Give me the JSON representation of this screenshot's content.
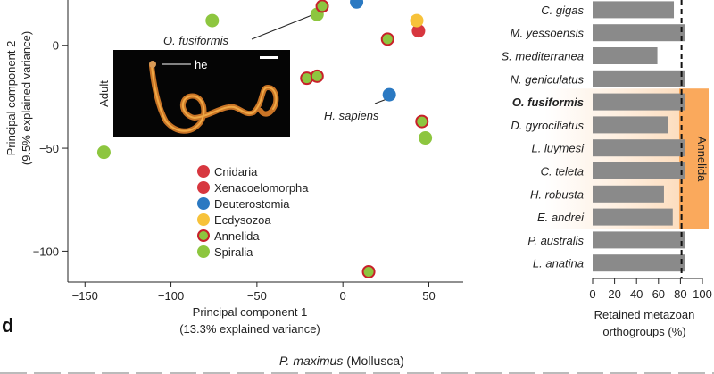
{
  "panel_letter": "d",
  "bottom_caption": {
    "species": "P. maximus",
    "group": " (Mollusca)"
  },
  "chart_data": [
    {
      "type": "scatter",
      "xlabel": [
        "Principal component 1",
        "(13.3% explained variance)"
      ],
      "ylabel": [
        "Principal component 2",
        "(9.5% explained variance)"
      ],
      "xlim": [
        -160,
        70
      ],
      "ylim": [
        -115,
        22
      ],
      "xticks": [
        -150,
        -100,
        -50,
        0,
        50
      ],
      "xtick_labels": [
        "−150",
        "−100",
        "−50",
        "0",
        "50"
      ],
      "yticks": [
        0,
        -50,
        -100
      ],
      "ytick_labels": [
        "0",
        "−50",
        "−100"
      ],
      "legend": {
        "placement": "center",
        "items": [
          {
            "name": "Cnidaria",
            "color": "#d7373f",
            "ring": false
          },
          {
            "name": "Xenacoelomorpha",
            "color": "#d7373f",
            "ring": false
          },
          {
            "name": "Deuterostomia",
            "color": "#2b79c2",
            "ring": false
          },
          {
            "name": "Ecdysozoa",
            "color": "#f7c23a",
            "ring": false
          },
          {
            "name": "Annelida",
            "color": "#8dc63f",
            "ring": true
          },
          {
            "name": "Spiralia",
            "color": "#8dc63f",
            "ring": false
          }
        ]
      },
      "points": [
        {
          "x": -76,
          "y": 12,
          "group": "Spiralia"
        },
        {
          "x": -139,
          "y": -52,
          "group": "Spiralia"
        },
        {
          "x": -15,
          "y": 15,
          "group": "Spiralia"
        },
        {
          "x": 48,
          "y": -45,
          "group": "Spiralia"
        },
        {
          "x": -12,
          "y": 19,
          "group": "Annelida"
        },
        {
          "x": 26,
          "y": 3,
          "group": "Annelida"
        },
        {
          "x": -21,
          "y": -16,
          "group": "Annelida"
        },
        {
          "x": -15,
          "y": -15,
          "group": "Annelida"
        },
        {
          "x": 46,
          "y": -37,
          "group": "Annelida"
        },
        {
          "x": 15,
          "y": -110,
          "group": "Annelida"
        },
        {
          "x": 8,
          "y": 21,
          "group": "Deuterostomia"
        },
        {
          "x": 27,
          "y": -24,
          "group": "Deuterostomia"
        },
        {
          "x": 44,
          "y": 7,
          "group": "Cnidaria"
        },
        {
          "x": 43,
          "y": 12,
          "group": "Ecdysozoa"
        }
      ],
      "annotations": [
        {
          "text": "O. fusiformis",
          "italic": true
        },
        {
          "text": "H. sapiens",
          "italic": true
        }
      ],
      "inset": {
        "label": "Adult",
        "marker": "he"
      }
    },
    {
      "type": "bar",
      "orientation": "horizontal",
      "categories": [
        "C. gigas",
        "M. yessoensis",
        "S. mediterranea",
        "N. geniculatus",
        "O. fusiformis",
        "D. gyrociliatus",
        "L. luymesi",
        "C. teleta",
        "H. robusta",
        "E. andrei",
        "P. australis",
        "L. anatina"
      ],
      "values": [
        74,
        84,
        59,
        84,
        84,
        69,
        84,
        84,
        65,
        73,
        84,
        84
      ],
      "bar_color": "#8a8a8a",
      "highlight_category": "O. fusiformis",
      "xlabel": [
        "Retained metazoan",
        "orthogroups (%)"
      ],
      "xlim": [
        0,
        100
      ],
      "xticks": [
        0,
        20,
        40,
        60,
        80,
        100
      ],
      "reference_line": 81,
      "bracket": {
        "label": "Annelida",
        "from": "O. fusiformis",
        "to": "E. andrei",
        "color": "#f9a04a"
      }
    }
  ]
}
